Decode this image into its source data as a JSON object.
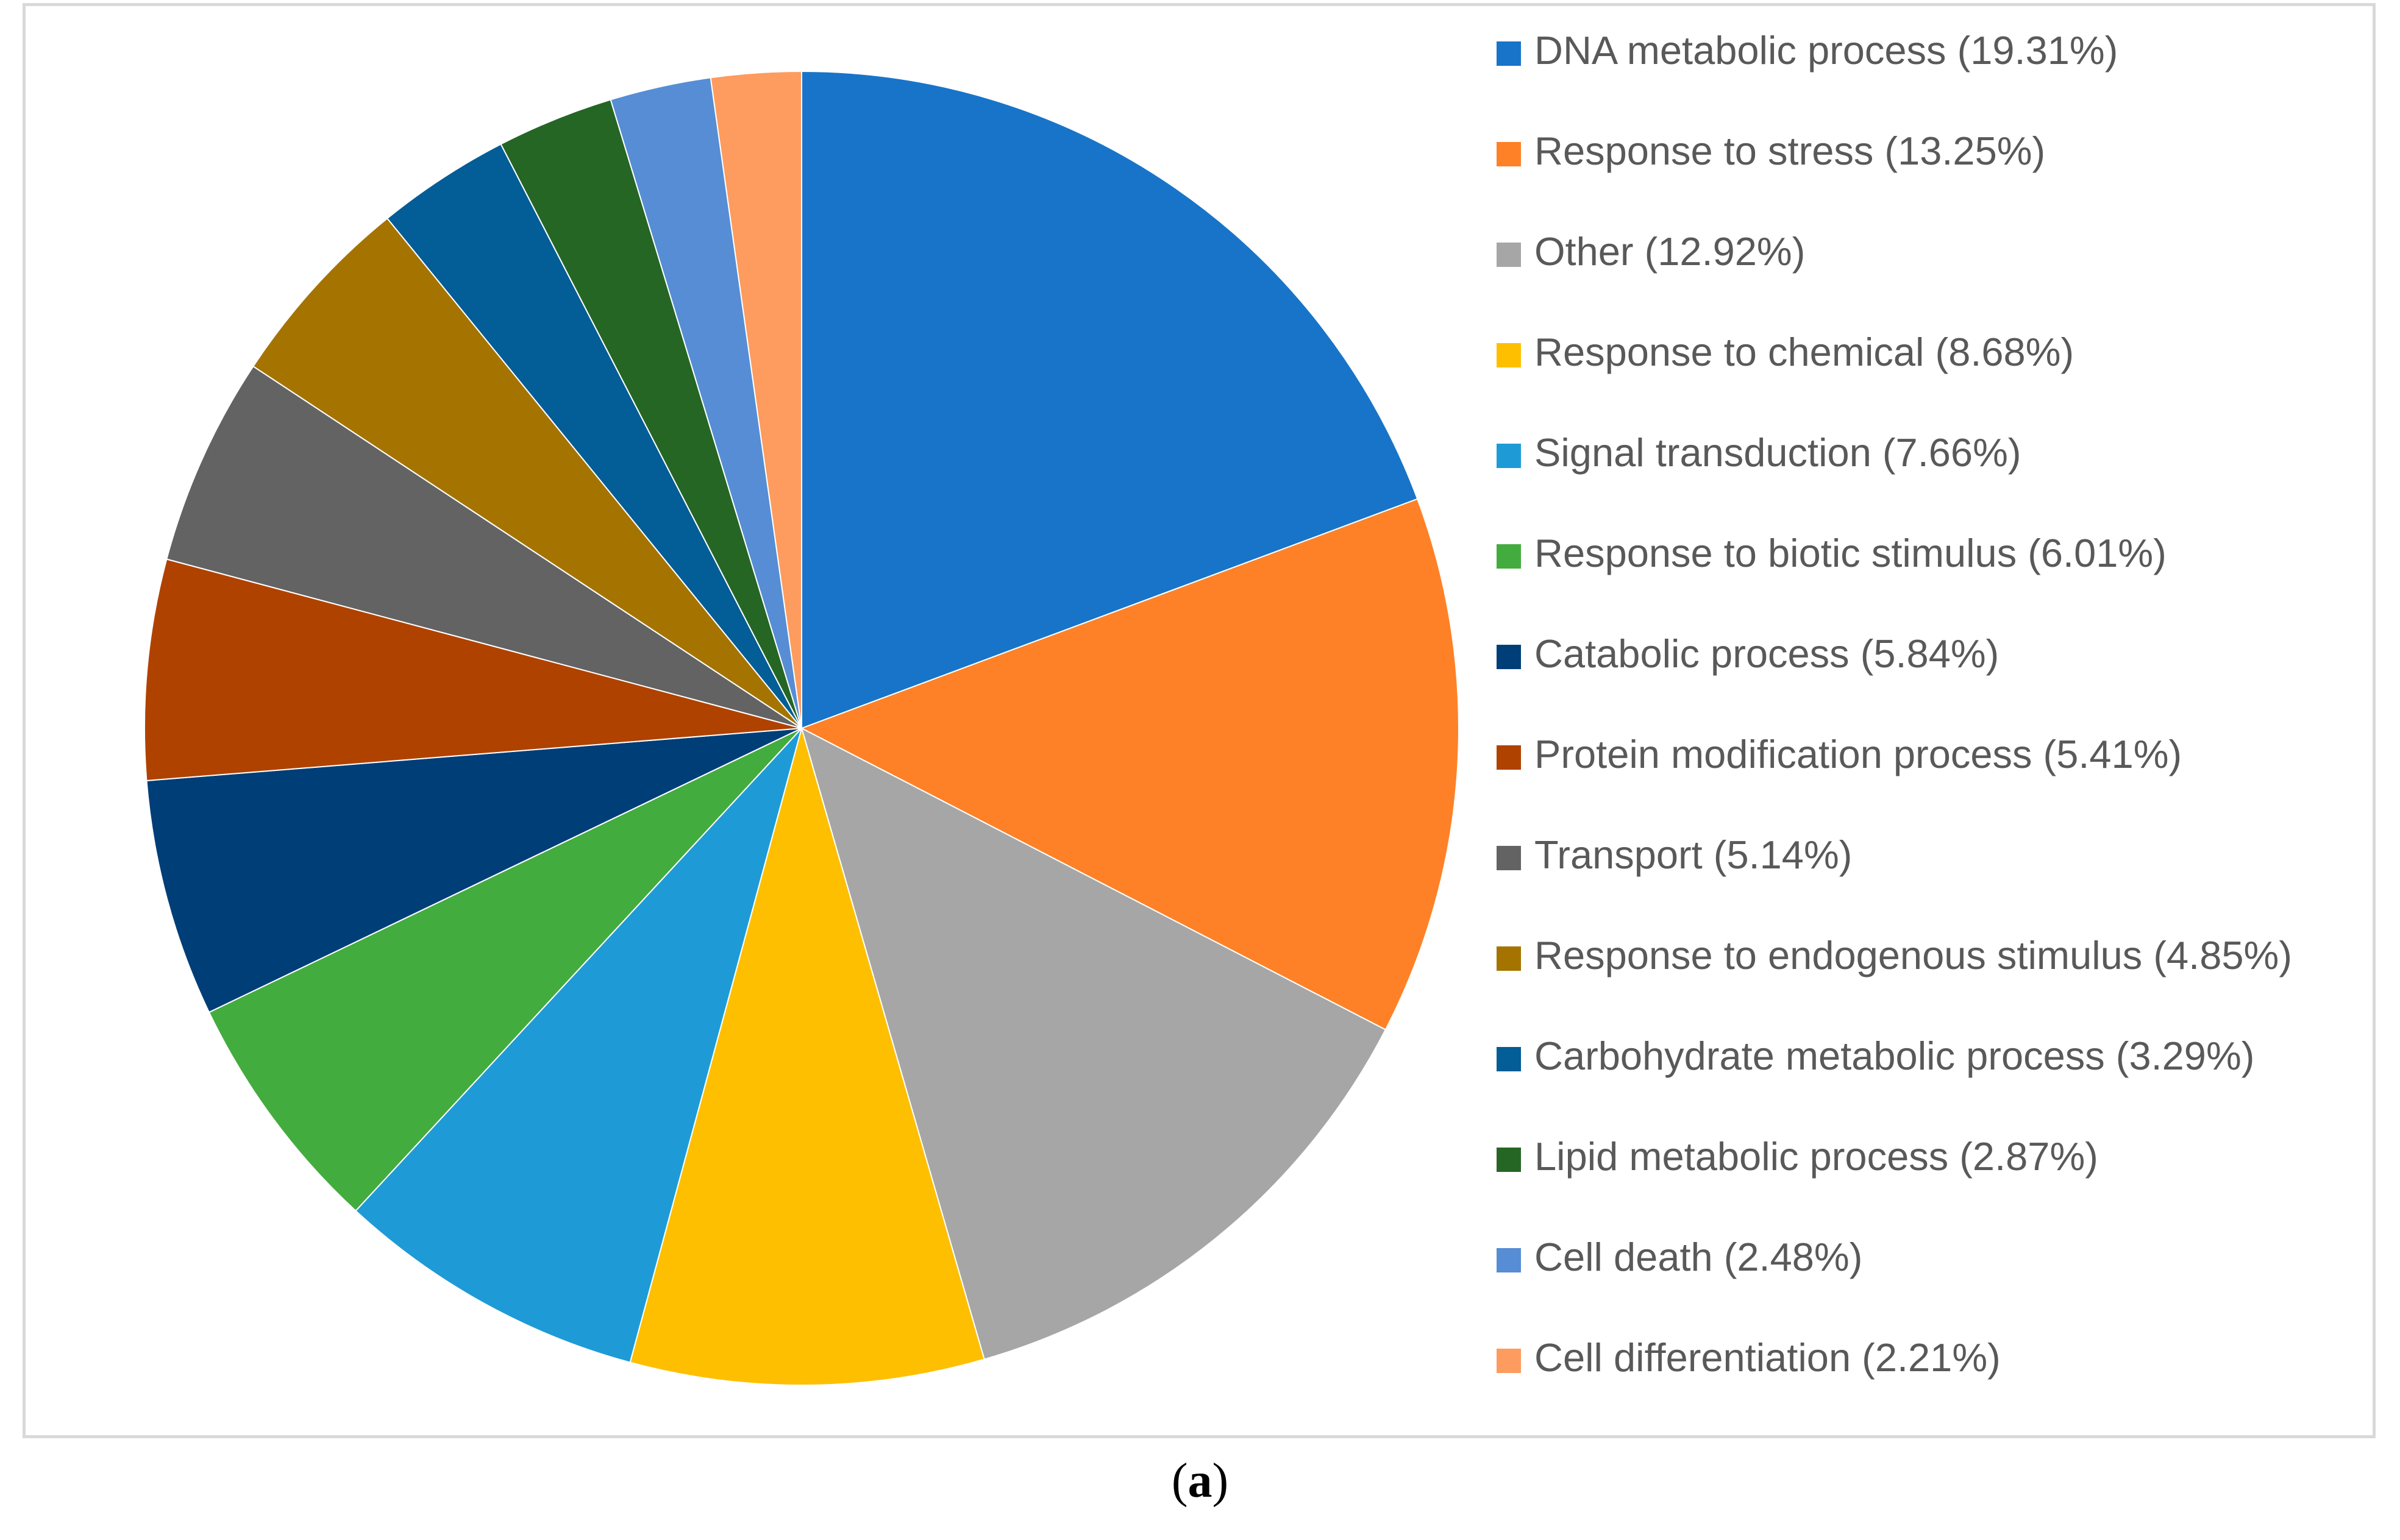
{
  "chart_data": {
    "type": "pie",
    "start_angle_deg": 0,
    "direction": "clockwise",
    "slices": [
      {
        "label": "DNA metabolic process (19.31%)",
        "value": 19.31,
        "color": "#1874C8"
      },
      {
        "label": "Response to stress (13.25%)",
        "value": 13.25,
        "color": "#FE8127"
      },
      {
        "label": "Other (12.92%)",
        "value": 12.92,
        "color": "#A6A6A6"
      },
      {
        "label": "Response to chemical (8.68%)",
        "value": 8.68,
        "color": "#FEBF00"
      },
      {
        "label": "Signal transduction (7.66%)",
        "value": 7.66,
        "color": "#1E9BD7"
      },
      {
        "label": "Response to biotic stimulus (6.01%)",
        "value": 6.01,
        "color": "#43AC3E"
      },
      {
        "label": "Catabolic process (5.84%)",
        "value": 5.84,
        "color": "#003E78"
      },
      {
        "label": "Protein modification process (5.41%)",
        "value": 5.41,
        "color": "#B04200"
      },
      {
        "label": "Transport (5.14%)",
        "value": 5.14,
        "color": "#636363"
      },
      {
        "label": "Response to endogenous stimulus (4.85%)",
        "value": 4.85,
        "color": "#A57400"
      },
      {
        "label": "Carbohydrate metabolic process (3.29%)",
        "value": 3.29,
        "color": "#035D96"
      },
      {
        "label": "Lipid metabolic process (2.87%)",
        "value": 2.87,
        "color": "#256624"
      },
      {
        "label": "Cell death (2.48%)",
        "value": 2.48,
        "color": "#568DD5"
      },
      {
        "label": "Cell differentiation (2.21%)",
        "value": 2.21,
        "color": "#FE9B5E"
      }
    ]
  },
  "caption": {
    "open": "(",
    "letter": "a",
    "close": ")"
  }
}
